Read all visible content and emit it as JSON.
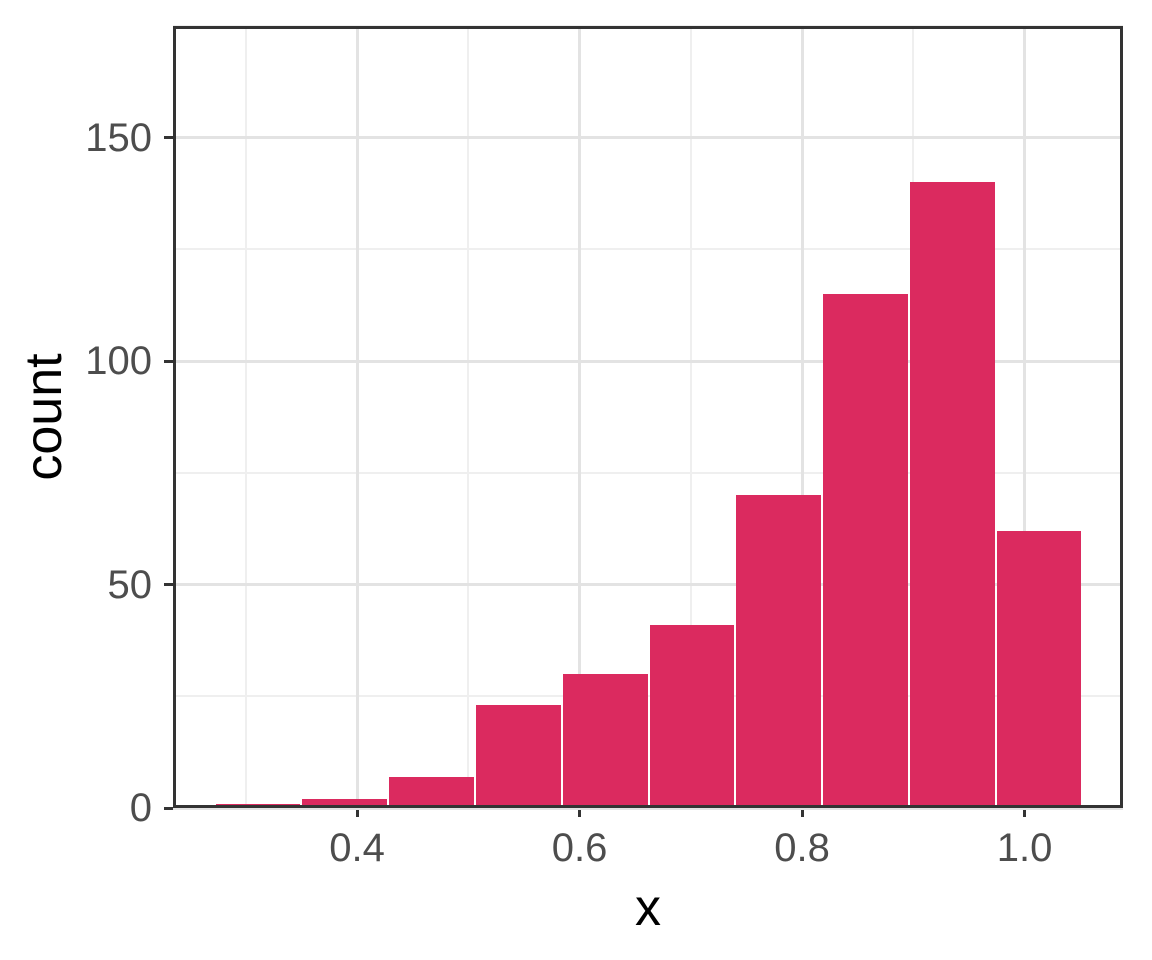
{
  "figure": {
    "background_color": "#ffffff"
  },
  "chart_data": {
    "type": "bar",
    "subtype": "histogram",
    "title": "",
    "xlabel": "x",
    "ylabel": "count",
    "bar_color": "#DB2A5F",
    "bar_gap_color": "#ffffff",
    "panel_border_color": "#333333",
    "major_grid_color": "#E3E3E3",
    "minor_grid_color": "#EFEFEF",
    "tick_color": "#333333",
    "tick_label_color": "#4d4d4d",
    "grid": true,
    "legend": false,
    "xlim": [
      0.2345,
      1.0885
    ],
    "ylim": [
      0,
      175
    ],
    "bin_edges": [
      0.272,
      0.35,
      0.428,
      0.506,
      0.584,
      0.662,
      0.74,
      0.818,
      0.896,
      0.974,
      1.052
    ],
    "counts": [
      1,
      2,
      7,
      23,
      30,
      41,
      70,
      115,
      140,
      62
    ],
    "x_ticks": [
      0.4,
      0.6,
      0.8,
      1.0
    ],
    "x_tick_labels": [
      "0.4",
      "0.6",
      "0.8",
      "1.0"
    ],
    "x_minor_gridlines": [
      0.3,
      0.5,
      0.7,
      0.9
    ],
    "y_ticks": [
      0,
      50,
      100,
      150
    ],
    "y_tick_labels": [
      "0",
      "50",
      "100",
      "150"
    ],
    "y_minor_gridlines": [
      25,
      75,
      125,
      175
    ]
  }
}
